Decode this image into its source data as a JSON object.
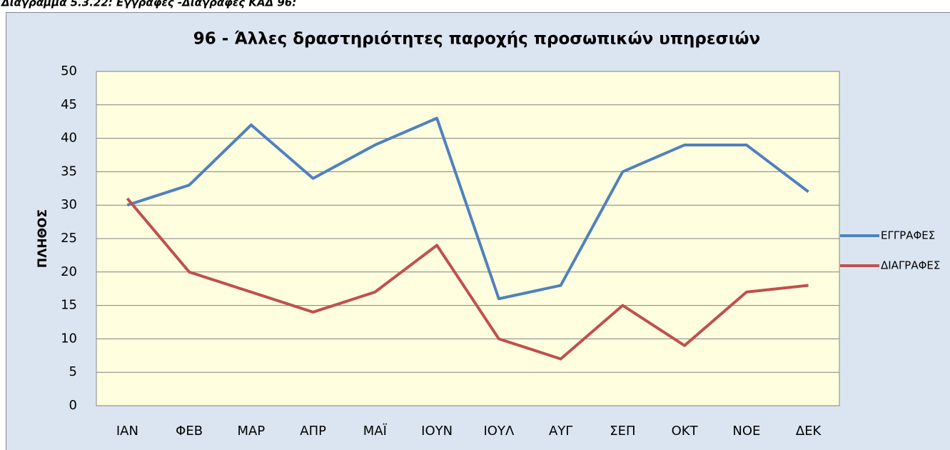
{
  "caption": "Διάγραμμα 5.3.22: Εγγραφές -Διαγραφές ΚΑΔ 96:",
  "chart_data": {
    "type": "line",
    "title": "96 - Άλλες δραστηριότητες παροχής προσωπικών υπηρεσιών",
    "ylabel": "ΠΛΗΘΟΣ",
    "categories": [
      "ΙΑΝ",
      "ΦΕΒ",
      "ΜΑΡ",
      "ΑΠΡ",
      "ΜΑΪ",
      "ΙΟΥΝ",
      "ΙΟΥΛ",
      "ΑΥΓ",
      "ΣΕΠ",
      "ΟΚΤ",
      "ΝΟΕ",
      "ΔΕΚ"
    ],
    "series": [
      {
        "name": "ΕΓΓΡΑΦΕΣ",
        "color": "#4f81bd",
        "values": [
          30,
          33,
          42,
          34,
          39,
          43,
          16,
          18,
          35,
          39,
          39,
          32
        ]
      },
      {
        "name": "ΔΙΑΓΡΑΦΕΣ",
        "color": "#c0504d",
        "values": [
          31,
          20,
          17,
          14,
          17,
          24,
          10,
          7,
          15,
          9,
          17,
          18
        ]
      }
    ],
    "ylim": [
      0,
      50
    ],
    "yticks": [
      0,
      5,
      10,
      15,
      20,
      25,
      30,
      35,
      40,
      45,
      50
    ],
    "grid": true,
    "legend": "right"
  }
}
